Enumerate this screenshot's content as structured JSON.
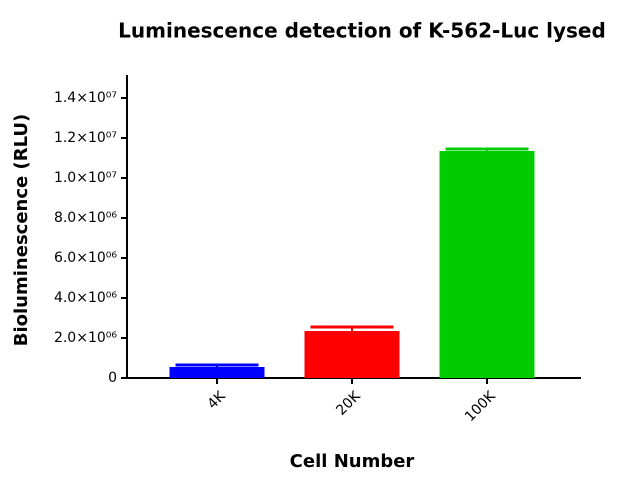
{
  "chart_data": {
    "type": "bar",
    "title": "Luminescence detection of  K-562-Luc lysed",
    "x_label": "Cell Number",
    "y_label": "Bioluminescence (RLU)",
    "categories": [
      "4K",
      "20K",
      "100K"
    ],
    "values": [
      550000,
      2350000,
      11350000
    ],
    "errors": [
      100000,
      200000,
      100000
    ],
    "colors": [
      "#0000ff",
      "#ff0000",
      "#00cc00"
    ],
    "ylim": [
      0,
      15000000
    ],
    "yticks": [
      0,
      {
        "value": 2000000,
        "label": "2.0×10⁰⁶"
      },
      {
        "value": 4000000,
        "label": "4.0×10⁰⁶"
      },
      {
        "value": 6000000,
        "label": "6.0×10⁰⁶"
      },
      {
        "value": 8000000,
        "label": "8.0×10⁰⁶"
      },
      {
        "value": 10000000,
        "label": "1.0×10⁰⁷"
      },
      {
        "value": 12000000,
        "label": "1.2×10⁰⁷"
      },
      {
        "value": 14000000,
        "label": "1.4×10⁰⁷"
      }
    ],
    "grid": false
  }
}
